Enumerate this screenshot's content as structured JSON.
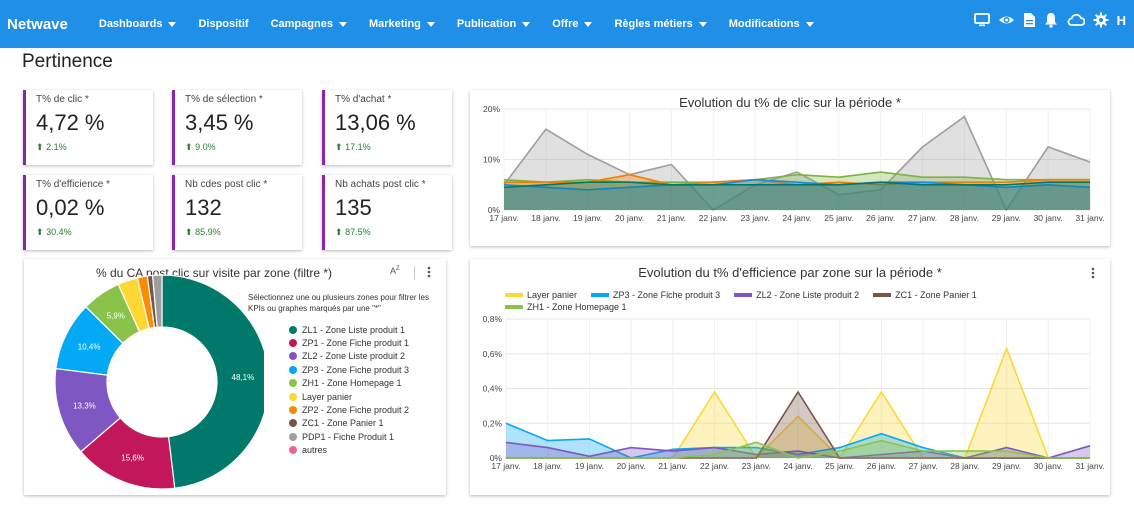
{
  "app": {
    "brand": "Netwave",
    "user_initial": "H"
  },
  "nav": [
    {
      "label": "Dashboards",
      "dropdown": true
    },
    {
      "label": "Dispositif",
      "dropdown": false
    },
    {
      "label": "Campagnes",
      "dropdown": true
    },
    {
      "label": "Marketing",
      "dropdown": true
    },
    {
      "label": "Publication",
      "dropdown": true
    },
    {
      "label": "Offre",
      "dropdown": true
    },
    {
      "label": "Règles métiers",
      "dropdown": true
    },
    {
      "label": "Modifications",
      "dropdown": true
    }
  ],
  "top_icons": [
    "monitor-icon",
    "eye-icon",
    "document-icon",
    "bell-icon",
    "cloud-icon",
    "gear-icon"
  ],
  "page": {
    "title": "Pertinence"
  },
  "kpis": [
    {
      "label": "T% de clic *",
      "value": "4,72 %",
      "delta": "2.1%"
    },
    {
      "label": "T% de sélection *",
      "value": "3,45 %",
      "delta": "9.0%"
    },
    {
      "label": "T% d'achat *",
      "value": "13,06 %",
      "delta": "17.1%"
    },
    {
      "label": "T% d'efficience *",
      "value": "0,02 %",
      "delta": "30.4%"
    },
    {
      "label": "Nb cdes post clic *",
      "value": "132",
      "delta": "85.9%"
    },
    {
      "label": "Nb achats post clic *",
      "value": "135",
      "delta": "87.5%"
    }
  ],
  "colors": {
    "topbar": "#1f8fe8",
    "kpi_accent": "#8e24aa",
    "delta_up": "#2e7d32"
  },
  "donut_card": {
    "title": "% du CA post clic sur visite par zone (filtre *)",
    "sort_icon": "sort-az-icon",
    "menu_icon": "kebab-menu-icon",
    "hint": "Sélectionnez une ou plusieurs zones pour filtrer les KPIs ou graphes marqués par une \"*\""
  },
  "line_card_title_clic": "Evolution du t% de clic sur la période *",
  "line_card_title_eff": "Evolution du t% d'efficience par zone sur la période *",
  "chart_data": [
    {
      "type": "area",
      "title": "Evolution du t% de clic sur la période *",
      "x": [
        "17 janv.",
        "18 janv.",
        "19 janv.",
        "20 janv.",
        "21 janv.",
        "22 janv.",
        "23 janv.",
        "24 janv.",
        "25 janv.",
        "26 janv.",
        "27 janv.",
        "28 janv.",
        "29 janv.",
        "30 janv.",
        "31 janv."
      ],
      "yticks": [
        "0%",
        "10%",
        "20%"
      ],
      "ylim": [
        0,
        20
      ],
      "grid": true,
      "series": [
        {
          "color": "#9e9e9e",
          "values": [
            5,
            16,
            11,
            7,
            9,
            0,
            5,
            7.5,
            3,
            4,
            12.5,
            18.5,
            0,
            12.5,
            9.5
          ]
        },
        {
          "color": "#7cb342",
          "values": [
            6,
            5.5,
            6,
            5.5,
            5.5,
            5.5,
            6,
            7,
            6.5,
            7.5,
            6.5,
            6.5,
            6,
            6,
            6
          ]
        },
        {
          "color": "#f57c00",
          "values": [
            5.5,
            5.5,
            5.5,
            7,
            5,
            5.5,
            6,
            5,
            5.5,
            5,
            5.5,
            5.5,
            5.5,
            6,
            6
          ]
        },
        {
          "color": "#1e88e5",
          "values": [
            5,
            4.5,
            4,
            4.5,
            5,
            5,
            6,
            5.5,
            5,
            5.5,
            5.5,
            5,
            4.5,
            5,
            4.5
          ]
        },
        {
          "color": "#00796b",
          "values": [
            4.5,
            5,
            5.5,
            5.5,
            5,
            5,
            5,
            5,
            5,
            5.5,
            5,
            5,
            5,
            5.5,
            5.5
          ]
        }
      ]
    },
    {
      "type": "pie",
      "donut": true,
      "title": "% du CA post clic sur visite par zone (filtre *)",
      "slices": [
        {
          "label": "ZL1 - Zone Liste produit 1",
          "value": 48.1,
          "value_label": "48,1%",
          "color": "#00796b"
        },
        {
          "label": "ZP1 - Zone Fiche produit 1",
          "value": 15.6,
          "value_label": "15,6%",
          "color": "#c2185b"
        },
        {
          "label": "ZL2 - Zone Liste produit 2",
          "value": 13.3,
          "value_label": "13,3%",
          "color": "#7e57c2"
        },
        {
          "label": "ZP3 - Zone Fiche produit 3",
          "value": 10.4,
          "value_label": "10,4%",
          "color": "#03a9f4"
        },
        {
          "label": "ZH1 - Zone Homepage 1",
          "value": 5.9,
          "value_label": "5,9%",
          "color": "#8bc34a"
        },
        {
          "label": "Layer panier",
          "value": 3.0,
          "value_label": "",
          "color": "#fdd835"
        },
        {
          "label": "ZP2 - Zone Fiche produit 2",
          "value": 1.5,
          "value_label": "",
          "color": "#fb8c00"
        },
        {
          "label": "ZC1 - Zone Panier 1",
          "value": 0.8,
          "value_label": "",
          "color": "#795548"
        },
        {
          "label": "PDP1 - Fiche Produit 1",
          "value": 1.4,
          "value_label": "",
          "color": "#9e9e9e"
        },
        {
          "label": "autres",
          "value": 0,
          "value_label": "",
          "color": "#f06292"
        }
      ]
    },
    {
      "type": "area",
      "title": "Evolution du t% d'efficience par zone sur la période *",
      "x": [
        "17 janv.",
        "18 janv.",
        "19 janv.",
        "20 janv.",
        "21 janv.",
        "22 janv.",
        "23 janv.",
        "24 janv.",
        "25 janv.",
        "26 janv.",
        "27 janv.",
        "28 janv.",
        "29 janv.",
        "30 janv.",
        "31 janv."
      ],
      "yticks": [
        "0%",
        "0,2%",
        "0,4%",
        "0,6%",
        "0,8%"
      ],
      "ylim": [
        0,
        0.8
      ],
      "grid": true,
      "legend_position": "top",
      "series": [
        {
          "name": "Layer panier",
          "color": "#fdd835",
          "values": [
            0,
            0,
            0,
            0,
            0,
            0.38,
            0,
            0.24,
            0,
            0.38,
            0,
            0,
            0.63,
            0,
            0
          ]
        },
        {
          "name": "ZP3 - Zone Fiche produit 3",
          "color": "#03a9f4",
          "values": [
            0.2,
            0.1,
            0.11,
            0,
            0.05,
            0.06,
            0.06,
            0.02,
            0.06,
            0.14,
            0.06,
            0,
            0,
            0,
            0
          ]
        },
        {
          "name": "ZL2 - Zone Liste produit 2",
          "color": "#7e57c2",
          "values": [
            0.09,
            0.06,
            0.01,
            0.06,
            0.04,
            0.06,
            0.02,
            0.04,
            0,
            0.02,
            0.04,
            0,
            0.06,
            0,
            0.07
          ]
        },
        {
          "name": "ZC1 - Zone Panier 1",
          "color": "#795548",
          "values": [
            0,
            0,
            0,
            0,
            0,
            0,
            0,
            0.38,
            0,
            0,
            0,
            0,
            0,
            0,
            0
          ]
        },
        {
          "name": "ZH1 - Zone Homepage 1",
          "color": "#8bc34a",
          "values": [
            0,
            0,
            0,
            0,
            0,
            0.02,
            0.09,
            0,
            0.04,
            0.1,
            0.04,
            0.04,
            0.04,
            0,
            0
          ]
        }
      ]
    }
  ]
}
